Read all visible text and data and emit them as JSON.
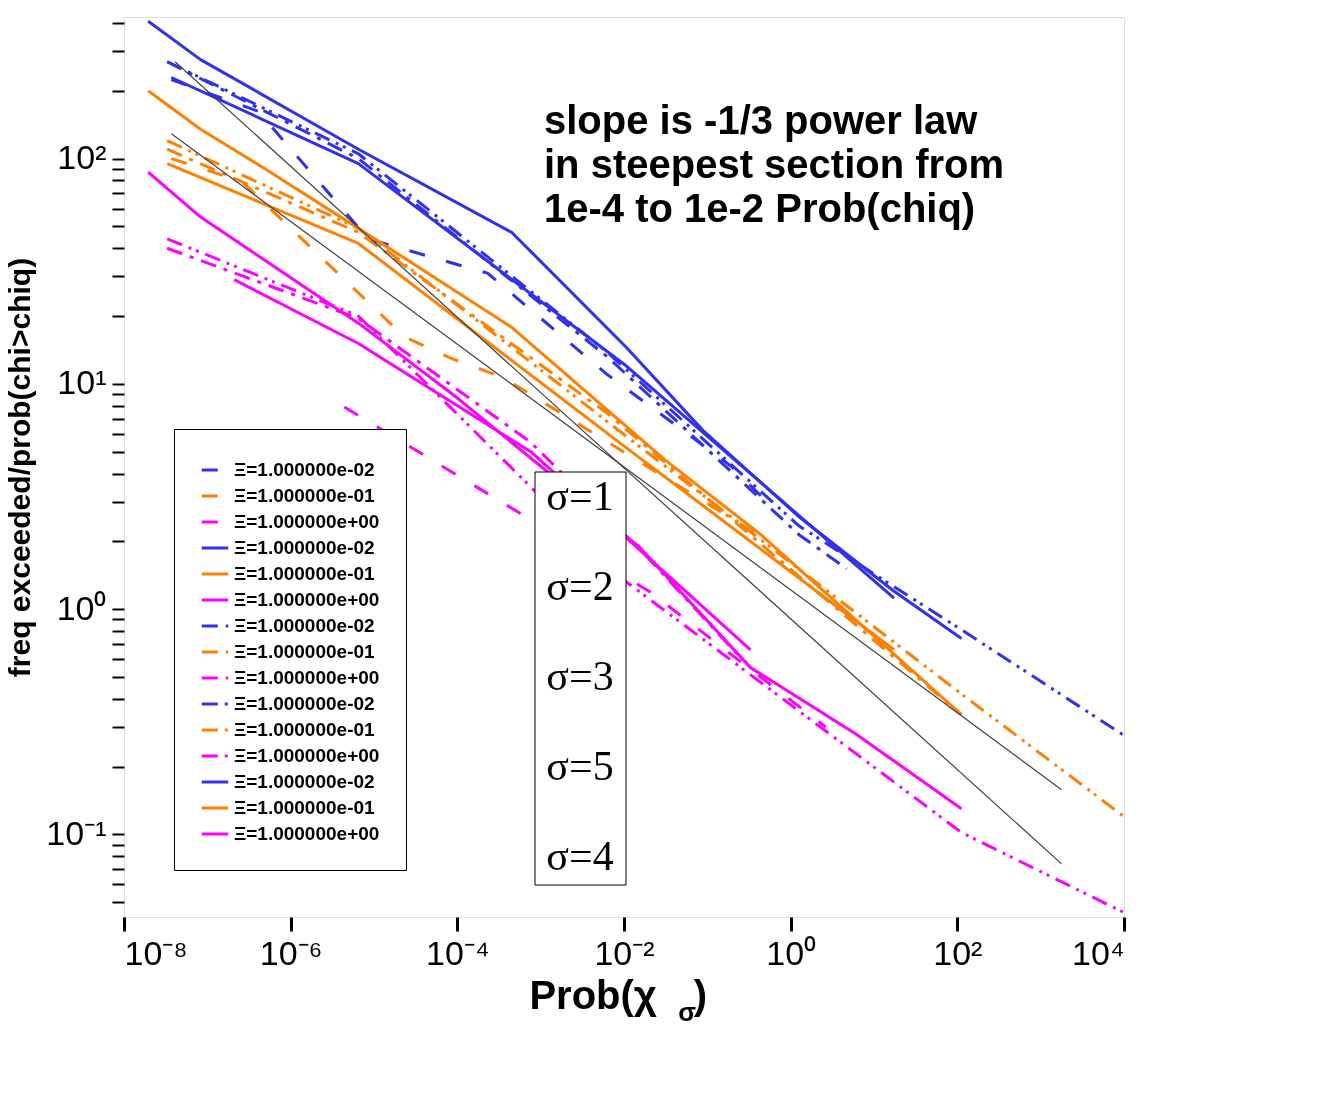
{
  "chart_data": {
    "type": "line",
    "xlabel": "Prob(χ$_{σ}$)",
    "ylabel": "freq exceeded/prob(chi>chiq)",
    "log": "xy",
    "grid": false,
    "legend": "bottom left",
    "xlim": [
      1e-08,
      10000.0
    ],
    "ylim": [
      0.043,
      425
    ],
    "xticks": [
      {
        "value": 1e-08,
        "label": "10⁻⁸"
      },
      {
        "value": 1e-06,
        "label": "10⁻⁶"
      },
      {
        "value": 0.0001,
        "label": "10⁻⁴"
      },
      {
        "value": 0.01,
        "label": "10⁻²"
      },
      {
        "value": 1,
        "label": "10⁰"
      },
      {
        "value": 100,
        "label": "10²"
      },
      {
        "value": 10000,
        "label": "10⁴"
      }
    ],
    "yticks": [
      {
        "value": 0.05,
        "label": null
      },
      {
        "value": 0.06,
        "label": null
      },
      {
        "value": 0.07,
        "label": null
      },
      {
        "value": 0.08,
        "label": null
      },
      {
        "value": 0.09,
        "label": null
      },
      {
        "value": 0.1,
        "label": "10⁻¹"
      },
      {
        "value": 0.2,
        "label": null
      },
      {
        "value": 0.3,
        "label": null
      },
      {
        "value": 0.4,
        "label": null
      },
      {
        "value": 0.5,
        "label": null
      },
      {
        "value": 0.6,
        "label": null
      },
      {
        "value": 0.7,
        "label": null
      },
      {
        "value": 0.8,
        "label": null
      },
      {
        "value": 0.9,
        "label": null
      },
      {
        "value": 1,
        "label": "10⁰"
      },
      {
        "value": 2,
        "label": null
      },
      {
        "value": 3,
        "label": null
      },
      {
        "value": 4,
        "label": null
      },
      {
        "value": 5,
        "label": null
      },
      {
        "value": 6,
        "label": null
      },
      {
        "value": 7,
        "label": null
      },
      {
        "value": 8,
        "label": null
      },
      {
        "value": 9,
        "label": null
      },
      {
        "value": 10,
        "label": "10¹"
      },
      {
        "value": 20,
        "label": null
      },
      {
        "value": 30,
        "label": null
      },
      {
        "value": 40,
        "label": null
      },
      {
        "value": 50,
        "label": null
      },
      {
        "value": 60,
        "label": null
      },
      {
        "value": 70,
        "label": null
      },
      {
        "value": 80,
        "label": null
      },
      {
        "value": 90,
        "label": null
      },
      {
        "value": 100,
        "label": "10²"
      },
      {
        "value": 200,
        "label": null
      },
      {
        "value": 300,
        "label": null
      },
      {
        "value": 400,
        "label": null
      }
    ],
    "annotations": [
      "slope is -1/3 power law\nin steepest section from\n1e-4 to 1e-2 Prob(chiq)",
      "σ=1",
      "σ=2",
      "σ=3",
      "σ=5",
      "σ=4"
    ],
    "series": [
      {
        "name": "Ξ=1.000000e-02",
        "color": "#3030f0",
        "line_style": "dashed",
        "x": [
          3.7e-08,
          4.1e-07,
          8.5e-06,
          0.00023,
          0.0063,
          0.195,
          0.62
        ],
        "values": [
          224,
          162,
          44,
          31,
          11,
          4.3,
          2.8
        ]
      },
      {
        "name": "Ξ=1.000000e-01",
        "color": "#ff7f00",
        "line_style": "dashed",
        "x": [
          3.7e-08,
          2.6e-07,
          2.3e-05,
          8.7e-05,
          0.00035,
          0.44
        ],
        "values": [
          100,
          79,
          16.2,
          12.9,
          10.7,
          2.1
        ]
      },
      {
        "name": "Ξ=1.000000e+00",
        "color": "#ff00ff",
        "line_style": "dashed",
        "x": [
          4.4e-06,
          0.02,
          2.63
        ],
        "values": [
          7.9,
          1.2,
          0.3
        ]
      },
      {
        "name": "Ξ=1.000000e-02",
        "color": "#3030f0",
        "line_style": "solid",
        "x": [
          1.95e-08,
          8.3e-08,
          6.5e-06,
          0.00045,
          0.0107,
          0.089,
          1.26,
          17.4,
          112
        ],
        "values": [
          407,
          275,
          110,
          47,
          14.5,
          6.2,
          2.57,
          1.2,
          0.74
        ]
      },
      {
        "name": "Ξ=1.000000e-01",
        "color": "#ff7f00",
        "line_style": "solid",
        "x": [
          1.95e-08,
          8.3e-08,
          4.7e-07,
          6.5e-06,
          0.00045,
          0.031,
          0.44,
          112
        ],
        "values": [
          200,
          135,
          91,
          49,
          17.8,
          4.6,
          2.14,
          0.34
        ]
      },
      {
        "name": "Ξ=1.000000e+00",
        "color": "#ff00ff",
        "line_style": "solid",
        "x": [
          1.95e-08,
          8.3e-08,
          6.5e-06,
          9.1e-05,
          0.015,
          0.33,
          6.0,
          112
        ],
        "values": [
          87,
          55,
          18.6,
          8.9,
          1.9,
          0.55,
          0.28,
          0.13
        ]
      },
      {
        "name": "Ξ=1.000000e-02",
        "color": "#3030f0",
        "line_style": "dashdot",
        "x": [
          3.3e-08,
          6.5e-06,
          0.0063,
          1.26,
          4.7
        ],
        "values": [
          269,
          100,
          13.2,
          2.14,
          1.51
        ]
      },
      {
        "name": "Ξ=1.000000e-01",
        "color": "#ff7f00",
        "line_style": "dashdot",
        "x": [
          3.3e-08,
          6.5e-06,
          0.0063,
          112
        ],
        "values": [
          110,
          47,
          7.4,
          0.34
        ]
      },
      {
        "name": "Ξ=1.000000e+00",
        "color": "#ff00ff",
        "line_style": "dashdot",
        "x": [
          3.3e-08,
          6.5e-06,
          0.00076,
          0.018,
          0.26
        ],
        "values": [
          40,
          19.5,
          5.5,
          1.74,
          0.6
        ]
      },
      {
        "name": "Ξ=1.000000e-02",
        "color": "#3030f0",
        "line_style": "dashdotdot",
        "x": [
          3.3e-08,
          6.5e-06,
          0.0063,
          1.26,
          112,
          10000
        ],
        "values": [
          269,
          105,
          13.8,
          2.34,
          0.81,
          0.275
        ]
      },
      {
        "name": "Ξ=1.000000e-01",
        "color": "#ff7f00",
        "line_style": "dashdotdot",
        "x": [
          3.3e-08,
          6.5e-06,
          0.0063,
          112,
          10000
        ],
        "values": [
          120,
          49,
          6.8,
          0.42,
          0.12
        ]
      },
      {
        "name": "Ξ=1.000000e+00",
        "color": "#ff00ff",
        "line_style": "dashdotdot",
        "x": [
          3.3e-08,
          6.5e-06,
          0.0107,
          112,
          10000
        ],
        "values": [
          44,
          20,
          1.32,
          0.102,
          0.045
        ]
      },
      {
        "name": "Ξ=1.000000e-02",
        "color": "#3030f0",
        "line_style": "solid",
        "x": [
          3.7e-08,
          6.5e-06,
          0.0107,
          17.4
        ],
        "values": [
          229,
          95,
          12,
          1.12
        ]
      },
      {
        "name": "Ξ=1.000000e-01",
        "color": "#ff7f00",
        "line_style": "solid",
        "x": [
          3.3e-08,
          6.5e-06,
          0.0107,
          17.4
        ],
        "values": [
          95,
          42,
          5.2,
          0.66
        ]
      },
      {
        "name": "Ξ=1.000000e+00",
        "color": "#ff00ff",
        "line_style": "solid",
        "x": [
          2.1e-07,
          6.5e-06,
          0.00076,
          0.33
        ],
        "values": [
          29,
          15.1,
          5.0,
          0.66
        ]
      },
      {
        "type": "line",
        "color": "#404040",
        "line_style": "solid",
        "x": [
          4.1e-08,
          1780
        ],
        "values": [
          269,
          0.074
        ]
      },
      {
        "type": "line",
        "color": "#404040",
        "line_style": "solid",
        "x": [
          3.7e-08,
          0.0107,
          1780
        ],
        "values": [
          129,
          4.2,
          0.158
        ]
      }
    ]
  }
}
